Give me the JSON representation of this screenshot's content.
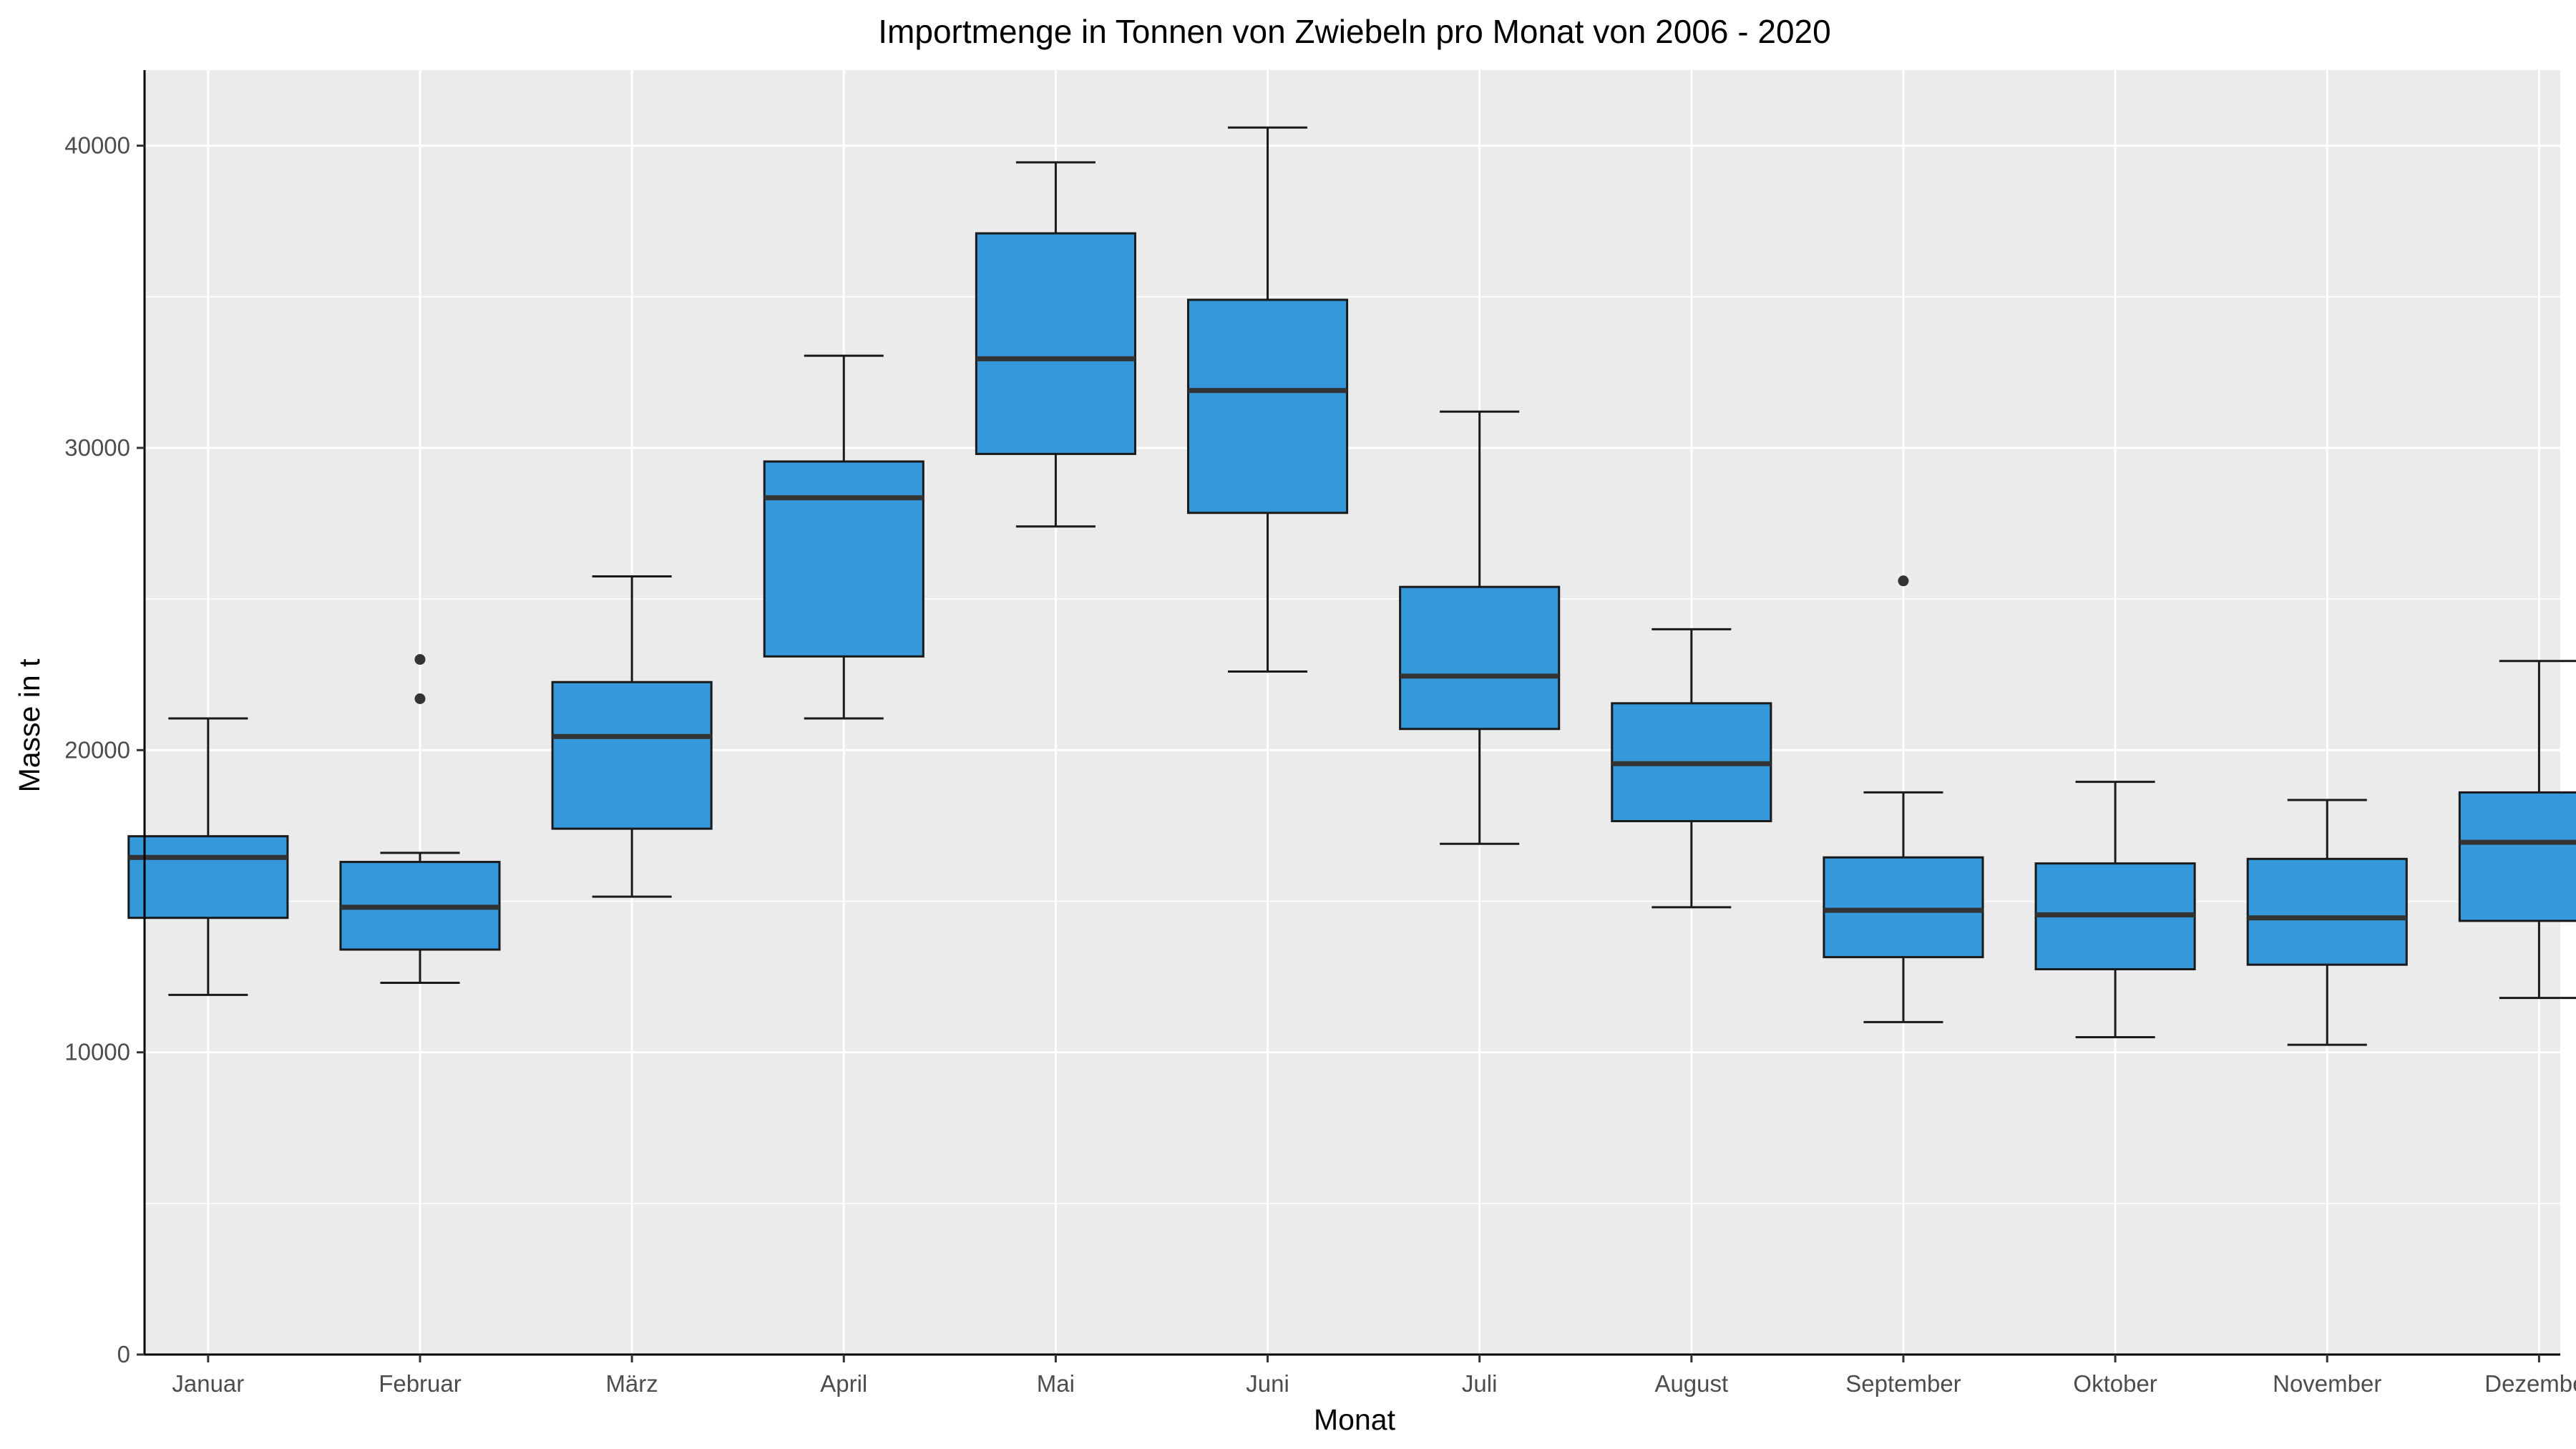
{
  "chart_data": {
    "type": "boxplot",
    "title": "Importmenge in Tonnen von Zwiebeln pro Monat von 2006 - 2020",
    "xlabel": "Monat",
    "ylabel": "Masse in t",
    "ylim": [
      0,
      42500
    ],
    "yticks": [
      "0",
      "10000",
      "20000",
      "30000",
      "40000"
    ],
    "ytick_values": [
      0,
      10000,
      20000,
      30000,
      40000
    ],
    "grid": true,
    "legend": "none",
    "colors": {
      "panel": "#ebebeb",
      "grid": "#ffffff",
      "box_fill": "#3498db",
      "box_line": "#1a1a1a",
      "median": "#333333",
      "outlier": "#333333"
    },
    "categories": [
      "Januar",
      "Februar",
      "März",
      "April",
      "Mai",
      "Juni",
      "Juli",
      "August",
      "September",
      "Oktober",
      "November",
      "Dezember"
    ],
    "boxes": [
      {
        "whisker_low": 11900,
        "q1": 14450,
        "median": 16450,
        "q3": 17150,
        "whisker_high": 21050,
        "outliers": []
      },
      {
        "whisker_low": 12300,
        "q1": 13400,
        "median": 14800,
        "q3": 16300,
        "whisker_high": 16600,
        "outliers": [
          21700,
          23000
        ]
      },
      {
        "whisker_low": 15150,
        "q1": 17400,
        "median": 20450,
        "q3": 22250,
        "whisker_high": 25750,
        "outliers": []
      },
      {
        "whisker_low": 21050,
        "q1": 23100,
        "median": 28350,
        "q3": 29550,
        "whisker_high": 33050,
        "outliers": []
      },
      {
        "whisker_low": 27400,
        "q1": 29800,
        "median": 32950,
        "q3": 37100,
        "whisker_high": 39450,
        "outliers": []
      },
      {
        "whisker_low": 22600,
        "q1": 27850,
        "median": 31900,
        "q3": 34900,
        "whisker_high": 40600,
        "outliers": []
      },
      {
        "whisker_low": 16900,
        "q1": 20700,
        "median": 22450,
        "q3": 25400,
        "whisker_high": 31200,
        "outliers": []
      },
      {
        "whisker_low": 14800,
        "q1": 17650,
        "median": 19550,
        "q3": 21550,
        "whisker_high": 24000,
        "outliers": []
      },
      {
        "whisker_low": 11000,
        "q1": 13150,
        "median": 14700,
        "q3": 16450,
        "whisker_high": 18600,
        "outliers": [
          25600
        ]
      },
      {
        "whisker_low": 10500,
        "q1": 12750,
        "median": 14550,
        "q3": 16250,
        "whisker_high": 18950,
        "outliers": []
      },
      {
        "whisker_low": 10250,
        "q1": 12900,
        "median": 14450,
        "q3": 16400,
        "whisker_high": 18350,
        "outliers": []
      },
      {
        "whisker_low": 11800,
        "q1": 14350,
        "median": 16950,
        "q3": 18600,
        "whisker_high": 22950,
        "outliers": []
      }
    ]
  }
}
